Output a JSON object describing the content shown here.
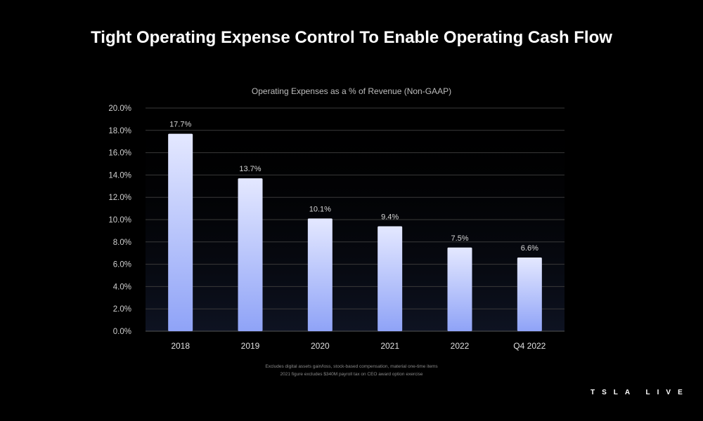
{
  "slide_title": "Tight Operating Expense Control To Enable Operating Cash Flow",
  "footnotes": [
    "Excludes digital assets gain/loss, stock-based compensation, material one-time items",
    "2021 figure excludes $340M payroll tax on CEO award option exercise"
  ],
  "brand": "TSLA LIVE",
  "colors": {
    "background": "#000000",
    "bar_top": "#e4e8ff",
    "bar_bottom": "#8fa3f7",
    "grid": "#3a3a3a"
  },
  "chart_data": {
    "type": "bar",
    "title": "Operating Expenses as a % of Revenue (Non-GAAP)",
    "xlabel": "",
    "ylabel": "",
    "categories": [
      "2018",
      "2019",
      "2020",
      "2021",
      "2022",
      "Q4 2022"
    ],
    "values": [
      17.7,
      13.7,
      10.1,
      9.4,
      7.5,
      6.6
    ],
    "data_labels": [
      "17.7%",
      "13.7%",
      "10.1%",
      "9.4%",
      "7.5%",
      "6.6%"
    ],
    "ylim": [
      0,
      20
    ],
    "yticks": [
      "0.0%",
      "2.0%",
      "4.0%",
      "6.0%",
      "8.0%",
      "10.0%",
      "12.0%",
      "14.0%",
      "16.0%",
      "18.0%",
      "20.0%"
    ],
    "grid": true,
    "legend": "none"
  }
}
